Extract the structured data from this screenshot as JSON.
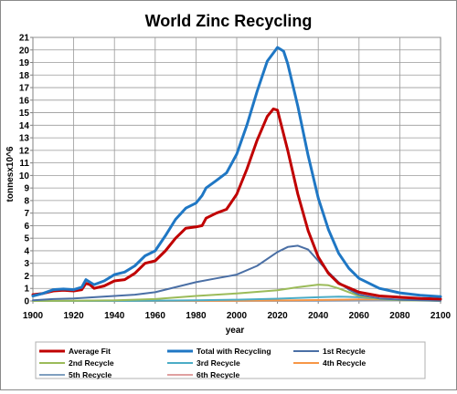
{
  "chart_data": {
    "type": "line",
    "title": "World Zinc Recycling",
    "xlabel": "year",
    "ylabel": "tonnesx10^6",
    "xlim": [
      1900,
      2100
    ],
    "ylim": [
      0,
      21
    ],
    "x_ticks": [
      1900,
      1920,
      1940,
      1960,
      1980,
      2000,
      2020,
      2040,
      2060,
      2080,
      2100
    ],
    "y_ticks": [
      0,
      1,
      2,
      3,
      4,
      5,
      6,
      7,
      8,
      9,
      10,
      11,
      12,
      13,
      14,
      15,
      16,
      17,
      18,
      19,
      20,
      21
    ],
    "grid": true,
    "legend_position": "bottom",
    "series": [
      {
        "name": "Average Fit",
        "color": "#c00000",
        "width": 3,
        "points": [
          [
            1900,
            0.5
          ],
          [
            1905,
            0.6
          ],
          [
            1910,
            0.8
          ],
          [
            1915,
            0.85
          ],
          [
            1920,
            0.8
          ],
          [
            1924,
            0.9
          ],
          [
            1926,
            1.4
          ],
          [
            1928,
            1.3
          ],
          [
            1930,
            1.0
          ],
          [
            1935,
            1.2
          ],
          [
            1940,
            1.6
          ],
          [
            1945,
            1.7
          ],
          [
            1950,
            2.2
          ],
          [
            1955,
            3.0
          ],
          [
            1960,
            3.2
          ],
          [
            1965,
            4.0
          ],
          [
            1970,
            5.0
          ],
          [
            1975,
            5.8
          ],
          [
            1980,
            5.9
          ],
          [
            1983,
            6.0
          ],
          [
            1985,
            6.6
          ],
          [
            1990,
            7.0
          ],
          [
            1995,
            7.3
          ],
          [
            2000,
            8.5
          ],
          [
            2005,
            10.5
          ],
          [
            2010,
            12.8
          ],
          [
            2015,
            14.7
          ],
          [
            2018,
            15.3
          ],
          [
            2020,
            15.2
          ],
          [
            2025,
            12.0
          ],
          [
            2030,
            8.5
          ],
          [
            2035,
            5.6
          ],
          [
            2040,
            3.5
          ],
          [
            2045,
            2.2
          ],
          [
            2050,
            1.4
          ],
          [
            2060,
            0.7
          ],
          [
            2070,
            0.4
          ],
          [
            2080,
            0.3
          ],
          [
            2090,
            0.2
          ],
          [
            2100,
            0.15
          ]
        ]
      },
      {
        "name": "Total with Recycling",
        "color": "#1f77c4",
        "width": 3,
        "points": [
          [
            1900,
            0.4
          ],
          [
            1905,
            0.6
          ],
          [
            1910,
            0.9
          ],
          [
            1915,
            0.95
          ],
          [
            1920,
            0.9
          ],
          [
            1924,
            1.1
          ],
          [
            1926,
            1.7
          ],
          [
            1928,
            1.5
          ],
          [
            1930,
            1.3
          ],
          [
            1935,
            1.6
          ],
          [
            1940,
            2.1
          ],
          [
            1945,
            2.3
          ],
          [
            1950,
            2.8
          ],
          [
            1955,
            3.6
          ],
          [
            1960,
            4.0
          ],
          [
            1965,
            5.2
          ],
          [
            1970,
            6.5
          ],
          [
            1975,
            7.4
          ],
          [
            1980,
            7.8
          ],
          [
            1983,
            8.4
          ],
          [
            1985,
            9.0
          ],
          [
            1990,
            9.6
          ],
          [
            1995,
            10.2
          ],
          [
            2000,
            11.7
          ],
          [
            2005,
            14.0
          ],
          [
            2010,
            16.7
          ],
          [
            2015,
            19.1
          ],
          [
            2020,
            20.2
          ],
          [
            2023,
            19.9
          ],
          [
            2025,
            18.9
          ],
          [
            2030,
            15.5
          ],
          [
            2035,
            11.6
          ],
          [
            2040,
            8.2
          ],
          [
            2045,
            5.7
          ],
          [
            2050,
            3.8
          ],
          [
            2055,
            2.6
          ],
          [
            2060,
            1.8
          ],
          [
            2070,
            1.0
          ],
          [
            2080,
            0.65
          ],
          [
            2090,
            0.45
          ],
          [
            2100,
            0.35
          ]
        ]
      },
      {
        "name": "1st Recycle",
        "color": "#4a6fa5",
        "width": 2,
        "points": [
          [
            1900,
            0.05
          ],
          [
            1910,
            0.15
          ],
          [
            1920,
            0.2
          ],
          [
            1930,
            0.3
          ],
          [
            1940,
            0.4
          ],
          [
            1950,
            0.5
          ],
          [
            1960,
            0.7
          ],
          [
            1970,
            1.1
          ],
          [
            1980,
            1.5
          ],
          [
            1990,
            1.8
          ],
          [
            2000,
            2.1
          ],
          [
            2010,
            2.8
          ],
          [
            2020,
            3.9
          ],
          [
            2025,
            4.3
          ],
          [
            2030,
            4.4
          ],
          [
            2035,
            4.1
          ],
          [
            2040,
            3.2
          ],
          [
            2045,
            2.3
          ],
          [
            2050,
            1.5
          ],
          [
            2055,
            0.9
          ],
          [
            2060,
            0.5
          ],
          [
            2070,
            0.2
          ],
          [
            2080,
            0.1
          ],
          [
            2090,
            0.05
          ],
          [
            2100,
            0.02
          ]
        ]
      },
      {
        "name": "2nd Recycle",
        "color": "#9bbb59",
        "width": 2,
        "points": [
          [
            1900,
            0
          ],
          [
            1920,
            0.02
          ],
          [
            1940,
            0.05
          ],
          [
            1960,
            0.15
          ],
          [
            1980,
            0.4
          ],
          [
            2000,
            0.6
          ],
          [
            2020,
            0.85
          ],
          [
            2030,
            1.1
          ],
          [
            2040,
            1.3
          ],
          [
            2045,
            1.25
          ],
          [
            2050,
            1.0
          ],
          [
            2055,
            0.7
          ],
          [
            2060,
            0.4
          ],
          [
            2070,
            0.15
          ],
          [
            2080,
            0.05
          ],
          [
            2100,
            0.01
          ]
        ]
      },
      {
        "name": "3rd Recycle",
        "color": "#4bacc6",
        "width": 2,
        "points": [
          [
            1900,
            0
          ],
          [
            1950,
            0.01
          ],
          [
            1980,
            0.05
          ],
          [
            2000,
            0.1
          ],
          [
            2020,
            0.18
          ],
          [
            2040,
            0.3
          ],
          [
            2050,
            0.35
          ],
          [
            2060,
            0.3
          ],
          [
            2070,
            0.18
          ],
          [
            2080,
            0.08
          ],
          [
            2100,
            0.02
          ]
        ]
      },
      {
        "name": "4th Recycle",
        "color": "#f79646",
        "width": 2,
        "points": [
          [
            1900,
            0
          ],
          [
            2000,
            0.02
          ],
          [
            2030,
            0.05
          ],
          [
            2060,
            0.12
          ],
          [
            2070,
            0.13
          ],
          [
            2080,
            0.1
          ],
          [
            2100,
            0.05
          ]
        ]
      },
      {
        "name": "5th Recycle",
        "color": "#7f9fbf",
        "width": 2,
        "points": [
          [
            1900,
            0
          ],
          [
            2030,
            0.01
          ],
          [
            2070,
            0.04
          ],
          [
            2090,
            0.06
          ],
          [
            2100,
            0.05
          ]
        ]
      },
      {
        "name": "6th Recycle",
        "color": "#e0a0a0",
        "width": 1.5,
        "points": [
          [
            1900,
            0
          ],
          [
            2060,
            0.01
          ],
          [
            2100,
            0.03
          ]
        ]
      }
    ]
  }
}
